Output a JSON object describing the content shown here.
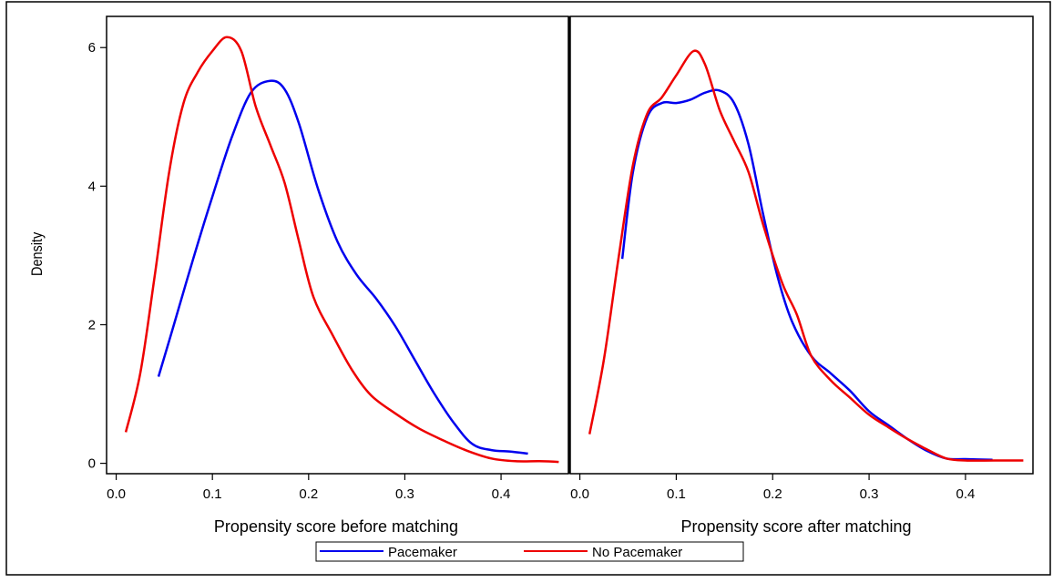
{
  "chart_data": [
    {
      "type": "line",
      "xlabel": "Propensity score before matching",
      "ylabel": "Density",
      "xlim": [
        -0.01,
        0.47
      ],
      "ylim": [
        -0.15,
        6.45
      ],
      "xticks": [
        "0.0",
        "0.1",
        "0.2",
        "0.3",
        "0.4"
      ],
      "yticks": [
        "0",
        "2",
        "4",
        "6"
      ],
      "grid": false,
      "series": [
        {
          "name": "Pacemaker",
          "color": "#0000ee",
          "points": [
            [
              0.044,
              1.25
            ],
            [
              0.06,
              2.0
            ],
            [
              0.08,
              2.95
            ],
            [
              0.1,
              3.85
            ],
            [
              0.12,
              4.7
            ],
            [
              0.14,
              5.35
            ],
            [
              0.16,
              5.52
            ],
            [
              0.175,
              5.4
            ],
            [
              0.19,
              4.9
            ],
            [
              0.21,
              3.95
            ],
            [
              0.23,
              3.2
            ],
            [
              0.25,
              2.72
            ],
            [
              0.27,
              2.38
            ],
            [
              0.29,
              1.98
            ],
            [
              0.31,
              1.5
            ],
            [
              0.33,
              1.02
            ],
            [
              0.35,
              0.6
            ],
            [
              0.37,
              0.28
            ],
            [
              0.39,
              0.19
            ],
            [
              0.41,
              0.17
            ],
            [
              0.428,
              0.14
            ]
          ]
        },
        {
          "name": "No Pacemaker",
          "color": "#ee0000",
          "points": [
            [
              0.01,
              0.45
            ],
            [
              0.025,
              1.3
            ],
            [
              0.04,
              2.7
            ],
            [
              0.055,
              4.2
            ],
            [
              0.07,
              5.2
            ],
            [
              0.085,
              5.65
            ],
            [
              0.1,
              5.95
            ],
            [
              0.115,
              6.15
            ],
            [
              0.13,
              5.95
            ],
            [
              0.145,
              5.15
            ],
            [
              0.16,
              4.6
            ],
            [
              0.175,
              4.05
            ],
            [
              0.19,
              3.2
            ],
            [
              0.205,
              2.4
            ],
            [
              0.225,
              1.85
            ],
            [
              0.245,
              1.35
            ],
            [
              0.265,
              0.98
            ],
            [
              0.29,
              0.72
            ],
            [
              0.315,
              0.5
            ],
            [
              0.34,
              0.33
            ],
            [
              0.365,
              0.18
            ],
            [
              0.39,
              0.07
            ],
            [
              0.415,
              0.03
            ],
            [
              0.44,
              0.03
            ],
            [
              0.46,
              0.02
            ]
          ]
        }
      ]
    },
    {
      "type": "line",
      "xlabel": "Propensity score after matching",
      "ylabel": "",
      "xlim": [
        -0.01,
        0.47
      ],
      "ylim": [
        -0.15,
        6.45
      ],
      "xticks": [
        "0.0",
        "0.1",
        "0.2",
        "0.3",
        "0.4"
      ],
      "grid": false,
      "series": [
        {
          "name": "Pacemaker",
          "color": "#0000ee",
          "points": [
            [
              0.044,
              2.95
            ],
            [
              0.055,
              4.2
            ],
            [
              0.07,
              5.0
            ],
            [
              0.085,
              5.2
            ],
            [
              0.1,
              5.2
            ],
            [
              0.115,
              5.25
            ],
            [
              0.13,
              5.35
            ],
            [
              0.145,
              5.38
            ],
            [
              0.16,
              5.2
            ],
            [
              0.175,
              4.6
            ],
            [
              0.19,
              3.6
            ],
            [
              0.205,
              2.7
            ],
            [
              0.22,
              2.05
            ],
            [
              0.24,
              1.55
            ],
            [
              0.26,
              1.3
            ],
            [
              0.28,
              1.05
            ],
            [
              0.3,
              0.75
            ],
            [
              0.32,
              0.55
            ],
            [
              0.34,
              0.35
            ],
            [
              0.36,
              0.18
            ],
            [
              0.38,
              0.07
            ],
            [
              0.4,
              0.06
            ],
            [
              0.428,
              0.05
            ]
          ]
        },
        {
          "name": "No Pacemaker",
          "color": "#ee0000",
          "points": [
            [
              0.01,
              0.42
            ],
            [
              0.025,
              1.5
            ],
            [
              0.04,
              2.95
            ],
            [
              0.055,
              4.3
            ],
            [
              0.07,
              5.05
            ],
            [
              0.085,
              5.28
            ],
            [
              0.1,
              5.6
            ],
            [
              0.118,
              5.95
            ],
            [
              0.13,
              5.75
            ],
            [
              0.145,
              5.1
            ],
            [
              0.16,
              4.65
            ],
            [
              0.175,
              4.2
            ],
            [
              0.19,
              3.45
            ],
            [
              0.21,
              2.6
            ],
            [
              0.225,
              2.15
            ],
            [
              0.24,
              1.55
            ],
            [
              0.26,
              1.2
            ],
            [
              0.28,
              0.95
            ],
            [
              0.3,
              0.7
            ],
            [
              0.32,
              0.52
            ],
            [
              0.34,
              0.35
            ],
            [
              0.36,
              0.2
            ],
            [
              0.38,
              0.07
            ],
            [
              0.4,
              0.04
            ],
            [
              0.43,
              0.04
            ],
            [
              0.46,
              0.04
            ]
          ]
        }
      ]
    }
  ],
  "legend": {
    "position": "bottom",
    "items": [
      {
        "label": "Pacemaker",
        "color": "#0000ee"
      },
      {
        "label": "No Pacemaker",
        "color": "#ee0000"
      }
    ]
  }
}
